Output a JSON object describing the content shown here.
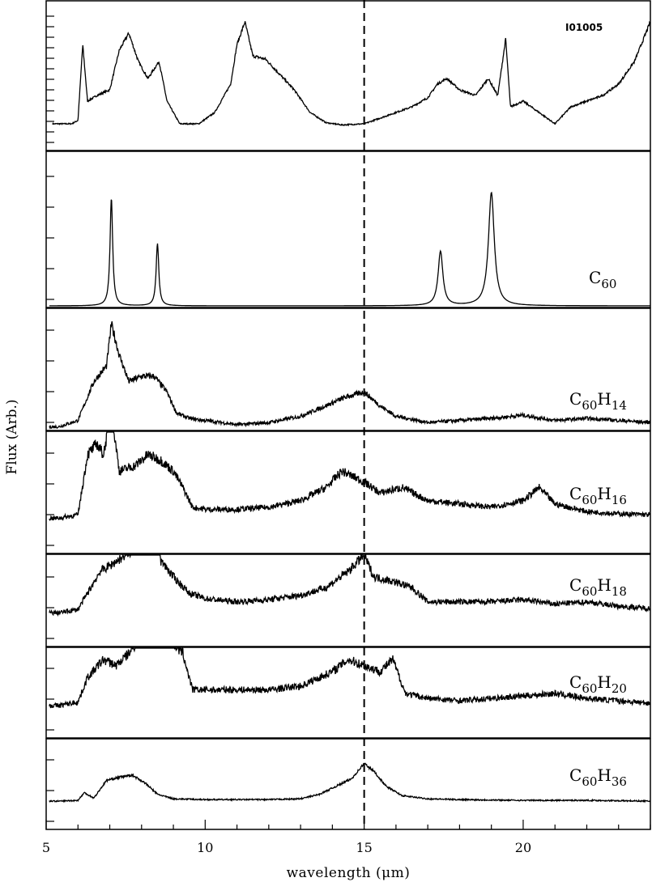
{
  "chart_data": {
    "type": "line",
    "xlabel": "wavelength (μm)",
    "ylabel": "Flux (Arb.)",
    "xlim": [
      5,
      24
    ],
    "xticks": [
      5,
      10,
      15,
      20
    ],
    "dashed_line_x": 15,
    "grid": false,
    "legend": "none",
    "panels": [
      {
        "name": "IO1005",
        "label_main": "",
        "label_sub": "",
        "label_text": "I01005",
        "noise": 0.012,
        "baseline": 0.06,
        "points": [
          [
            5.2,
            0.05
          ],
          [
            5.8,
            0.05
          ],
          [
            6.0,
            0.08
          ],
          [
            6.15,
            0.75
          ],
          [
            6.3,
            0.25
          ],
          [
            6.6,
            0.3
          ],
          [
            7.0,
            0.35
          ],
          [
            7.3,
            0.7
          ],
          [
            7.6,
            0.85
          ],
          [
            7.9,
            0.6
          ],
          [
            8.2,
            0.45
          ],
          [
            8.55,
            0.6
          ],
          [
            8.8,
            0.25
          ],
          [
            9.2,
            0.05
          ],
          [
            9.8,
            0.05
          ],
          [
            10.3,
            0.15
          ],
          [
            10.8,
            0.4
          ],
          [
            11.0,
            0.75
          ],
          [
            11.25,
            0.95
          ],
          [
            11.5,
            0.65
          ],
          [
            11.9,
            0.62
          ],
          [
            12.3,
            0.5
          ],
          [
            12.8,
            0.35
          ],
          [
            13.3,
            0.15
          ],
          [
            13.8,
            0.06
          ],
          [
            14.3,
            0.04
          ],
          [
            15.0,
            0.05
          ],
          [
            15.5,
            0.1
          ],
          [
            16.0,
            0.15
          ],
          [
            16.5,
            0.2
          ],
          [
            17.0,
            0.28
          ],
          [
            17.3,
            0.4
          ],
          [
            17.6,
            0.45
          ],
          [
            18.0,
            0.35
          ],
          [
            18.5,
            0.3
          ],
          [
            18.9,
            0.45
          ],
          [
            19.2,
            0.3
          ],
          [
            19.45,
            0.8
          ],
          [
            19.6,
            0.2
          ],
          [
            20.0,
            0.25
          ],
          [
            20.5,
            0.15
          ],
          [
            21.0,
            0.05
          ],
          [
            21.5,
            0.2
          ],
          [
            22.0,
            0.25
          ],
          [
            22.5,
            0.3
          ],
          [
            23.0,
            0.4
          ],
          [
            23.5,
            0.6
          ],
          [
            24.0,
            0.95
          ]
        ],
        "peaks": []
      },
      {
        "name": "C60",
        "label_main": "C",
        "label_sub": "60",
        "label_text": "",
        "noise": 0,
        "baseline": 0,
        "points": [],
        "peaks": [
          [
            7.05,
            0.95,
            0.05
          ],
          [
            8.5,
            0.55,
            0.05
          ],
          [
            17.4,
            0.48,
            0.09
          ],
          [
            19.0,
            1.0,
            0.11
          ]
        ]
      },
      {
        "name": "C60H14",
        "label_main": "C",
        "label_sub": "60",
        "label_sub2": "14",
        "noise": 0.035,
        "baseline": 0.02,
        "points": [
          [
            5.4,
            0.02
          ],
          [
            6.0,
            0.08
          ],
          [
            6.5,
            0.45
          ],
          [
            6.9,
            0.6
          ],
          [
            7.05,
            1.0
          ],
          [
            7.3,
            0.7
          ],
          [
            7.6,
            0.45
          ],
          [
            8.0,
            0.5
          ],
          [
            8.4,
            0.5
          ],
          [
            8.8,
            0.35
          ],
          [
            9.1,
            0.15
          ],
          [
            9.5,
            0.1
          ],
          [
            10.0,
            0.08
          ],
          [
            11.0,
            0.04
          ],
          [
            12.0,
            0.06
          ],
          [
            13.0,
            0.12
          ],
          [
            13.8,
            0.22
          ],
          [
            14.4,
            0.3
          ],
          [
            15.0,
            0.35
          ],
          [
            15.5,
            0.22
          ],
          [
            16.0,
            0.12
          ],
          [
            17.0,
            0.06
          ],
          [
            18.0,
            0.08
          ],
          [
            19.0,
            0.1
          ],
          [
            20.0,
            0.13
          ],
          [
            21.0,
            0.08
          ],
          [
            22.0,
            0.1
          ],
          [
            23.0,
            0.08
          ],
          [
            24.0,
            0.06
          ]
        ],
        "peaks": []
      },
      {
        "name": "C60H16",
        "label_main": "C",
        "label_sub": "60",
        "label_sub2": "16",
        "noise": 0.05,
        "baseline": 0.02,
        "points": [
          [
            5.4,
            0.02
          ],
          [
            6.0,
            0.05
          ],
          [
            6.3,
            0.6
          ],
          [
            6.6,
            0.7
          ],
          [
            6.8,
            0.6
          ],
          [
            7.05,
            1.0
          ],
          [
            7.3,
            0.45
          ],
          [
            7.8,
            0.5
          ],
          [
            8.2,
            0.6
          ],
          [
            8.6,
            0.55
          ],
          [
            9.0,
            0.45
          ],
          [
            9.3,
            0.3
          ],
          [
            9.6,
            0.12
          ],
          [
            10.0,
            0.1
          ],
          [
            11.0,
            0.1
          ],
          [
            12.0,
            0.12
          ],
          [
            13.0,
            0.18
          ],
          [
            13.8,
            0.3
          ],
          [
            14.3,
            0.45
          ],
          [
            15.0,
            0.35
          ],
          [
            15.5,
            0.25
          ],
          [
            16.2,
            0.3
          ],
          [
            17.0,
            0.18
          ],
          [
            18.0,
            0.15
          ],
          [
            19.0,
            0.12
          ],
          [
            20.0,
            0.18
          ],
          [
            20.5,
            0.3
          ],
          [
            21.0,
            0.15
          ],
          [
            22.0,
            0.08
          ],
          [
            23.0,
            0.06
          ],
          [
            24.0,
            0.05
          ]
        ],
        "peaks": []
      },
      {
        "name": "C60H18",
        "label_main": "C",
        "label_sub": "60",
        "label_sub2": "18",
        "noise": 0.05,
        "baseline": 0.02,
        "points": [
          [
            5.4,
            0.02
          ],
          [
            6.0,
            0.05
          ],
          [
            6.3,
            0.2
          ],
          [
            6.7,
            0.4
          ],
          [
            7.0,
            0.45
          ],
          [
            7.5,
            0.55
          ],
          [
            8.0,
            0.65
          ],
          [
            8.35,
            1.0
          ],
          [
            8.6,
            0.5
          ],
          [
            9.0,
            0.35
          ],
          [
            9.5,
            0.2
          ],
          [
            10.0,
            0.15
          ],
          [
            11.0,
            0.12
          ],
          [
            12.0,
            0.14
          ],
          [
            13.0,
            0.18
          ],
          [
            13.8,
            0.25
          ],
          [
            14.5,
            0.4
          ],
          [
            15.0,
            0.55
          ],
          [
            15.3,
            0.35
          ],
          [
            16.0,
            0.3
          ],
          [
            16.5,
            0.25
          ],
          [
            17.0,
            0.12
          ],
          [
            18.0,
            0.12
          ],
          [
            19.0,
            0.12
          ],
          [
            20.0,
            0.14
          ],
          [
            21.0,
            0.1
          ],
          [
            22.0,
            0.12
          ],
          [
            23.0,
            0.08
          ],
          [
            24.0,
            0.06
          ]
        ],
        "peaks": []
      },
      {
        "name": "C60H20",
        "label_main": "C",
        "label_sub": "60",
        "label_sub2": "20",
        "noise": 0.05,
        "baseline": 0.02,
        "points": [
          [
            5.4,
            0.02
          ],
          [
            6.0,
            0.05
          ],
          [
            6.3,
            0.25
          ],
          [
            6.8,
            0.4
          ],
          [
            7.2,
            0.35
          ],
          [
            7.6,
            0.45
          ],
          [
            8.0,
            0.6
          ],
          [
            8.4,
            0.8
          ],
          [
            8.6,
            0.95
          ],
          [
            8.9,
            0.55
          ],
          [
            9.3,
            0.45
          ],
          [
            9.6,
            0.15
          ],
          [
            10.0,
            0.15
          ],
          [
            11.0,
            0.15
          ],
          [
            12.0,
            0.15
          ],
          [
            13.0,
            0.18
          ],
          [
            14.0,
            0.3
          ],
          [
            14.5,
            0.4
          ],
          [
            15.0,
            0.35
          ],
          [
            15.5,
            0.3
          ],
          [
            15.9,
            0.4
          ],
          [
            16.3,
            0.12
          ],
          [
            17.0,
            0.08
          ],
          [
            18.0,
            0.06
          ],
          [
            19.0,
            0.08
          ],
          [
            20.0,
            0.1
          ],
          [
            21.0,
            0.12
          ],
          [
            22.0,
            0.08
          ],
          [
            23.0,
            0.06
          ],
          [
            24.0,
            0.04
          ]
        ],
        "peaks": []
      },
      {
        "name": "C60H36",
        "label_main": "C",
        "label_sub": "60",
        "label_sub2": "36",
        "noise": 0.02,
        "baseline": 0.01,
        "points": [
          [
            5.4,
            0.01
          ],
          [
            6.0,
            0.02
          ],
          [
            6.2,
            0.12
          ],
          [
            6.5,
            0.05
          ],
          [
            6.9,
            0.28
          ],
          [
            7.3,
            0.32
          ],
          [
            7.7,
            0.35
          ],
          [
            8.1,
            0.25
          ],
          [
            8.5,
            0.1
          ],
          [
            9.0,
            0.04
          ],
          [
            10.0,
            0.03
          ],
          [
            11.0,
            0.03
          ],
          [
            12.0,
            0.03
          ],
          [
            13.0,
            0.04
          ],
          [
            13.6,
            0.1
          ],
          [
            14.1,
            0.2
          ],
          [
            14.6,
            0.3
          ],
          [
            15.0,
            0.5
          ],
          [
            15.3,
            0.4
          ],
          [
            15.7,
            0.2
          ],
          [
            16.2,
            0.08
          ],
          [
            17.0,
            0.04
          ],
          [
            18.0,
            0.03
          ],
          [
            20.0,
            0.02
          ],
          [
            22.0,
            0.02
          ],
          [
            24.0,
            0.01
          ]
        ],
        "peaks": []
      }
    ]
  }
}
